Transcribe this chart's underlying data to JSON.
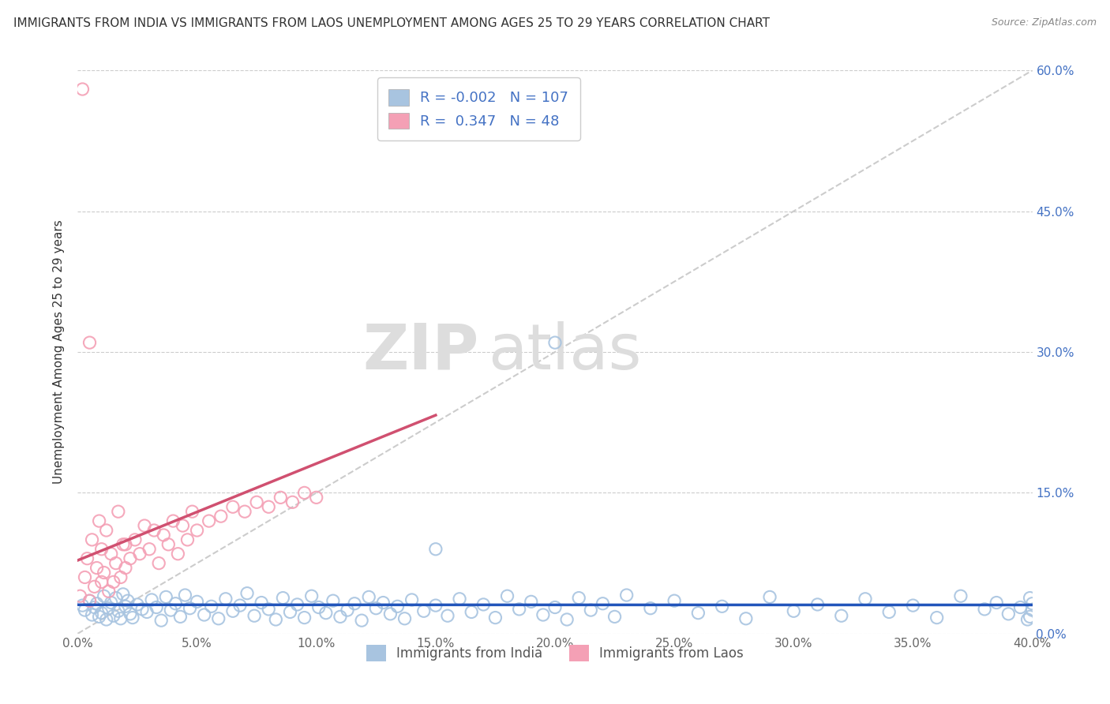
{
  "title": "IMMIGRANTS FROM INDIA VS IMMIGRANTS FROM LAOS UNEMPLOYMENT AMONG AGES 25 TO 29 YEARS CORRELATION CHART",
  "source": "Source: ZipAtlas.com",
  "ylabel": "Unemployment Among Ages 25 to 29 years",
  "xlim": [
    0.0,
    0.4
  ],
  "ylim": [
    0.0,
    0.6
  ],
  "xticks": [
    0.0,
    0.05,
    0.1,
    0.15,
    0.2,
    0.25,
    0.3,
    0.35,
    0.4
  ],
  "yticks": [
    0.0,
    0.15,
    0.3,
    0.45,
    0.6
  ],
  "india_R": -0.002,
  "india_N": 107,
  "laos_R": 0.347,
  "laos_N": 48,
  "india_color": "#a8c4e0",
  "laos_color": "#f4a0b5",
  "india_line_color": "#2255bb",
  "laos_line_color": "#d05070",
  "ref_line_color": "#cccccc",
  "tick_color": "#4472c4",
  "legend_india": "Immigrants from India",
  "legend_laos": "Immigrants from Laos",
  "watermark_zip": "ZIP",
  "watermark_atlas": "atlas",
  "background_color": "#ffffff",
  "india_x": [
    0.002,
    0.003,
    0.005,
    0.006,
    0.007,
    0.008,
    0.009,
    0.01,
    0.011,
    0.012,
    0.013,
    0.014,
    0.015,
    0.016,
    0.017,
    0.018,
    0.019,
    0.02,
    0.021,
    0.022,
    0.023,
    0.025,
    0.027,
    0.029,
    0.031,
    0.033,
    0.035,
    0.037,
    0.039,
    0.041,
    0.043,
    0.045,
    0.047,
    0.05,
    0.053,
    0.056,
    0.059,
    0.062,
    0.065,
    0.068,
    0.071,
    0.074,
    0.077,
    0.08,
    0.083,
    0.086,
    0.089,
    0.092,
    0.095,
    0.098,
    0.101,
    0.104,
    0.107,
    0.11,
    0.113,
    0.116,
    0.119,
    0.122,
    0.125,
    0.128,
    0.131,
    0.134,
    0.137,
    0.14,
    0.145,
    0.15,
    0.155,
    0.16,
    0.165,
    0.17,
    0.175,
    0.18,
    0.185,
    0.19,
    0.195,
    0.2,
    0.205,
    0.21,
    0.215,
    0.22,
    0.225,
    0.23,
    0.24,
    0.25,
    0.26,
    0.27,
    0.28,
    0.29,
    0.3,
    0.31,
    0.32,
    0.33,
    0.34,
    0.35,
    0.36,
    0.37,
    0.38,
    0.385,
    0.39,
    0.395,
    0.398,
    0.399,
    0.4,
    0.4,
    0.399,
    0.2,
    0.15
  ],
  "india_y": [
    0.03,
    0.025,
    0.035,
    0.02,
    0.028,
    0.032,
    0.018,
    0.022,
    0.04,
    0.015,
    0.027,
    0.033,
    0.019,
    0.038,
    0.024,
    0.016,
    0.042,
    0.029,
    0.035,
    0.021,
    0.017,
    0.031,
    0.026,
    0.023,
    0.036,
    0.028,
    0.014,
    0.039,
    0.025,
    0.032,
    0.018,
    0.041,
    0.027,
    0.034,
    0.02,
    0.029,
    0.016,
    0.037,
    0.024,
    0.03,
    0.043,
    0.019,
    0.033,
    0.026,
    0.015,
    0.038,
    0.023,
    0.031,
    0.017,
    0.04,
    0.028,
    0.022,
    0.035,
    0.018,
    0.025,
    0.032,
    0.014,
    0.039,
    0.027,
    0.033,
    0.021,
    0.029,
    0.016,
    0.036,
    0.024,
    0.03,
    0.019,
    0.037,
    0.023,
    0.031,
    0.017,
    0.04,
    0.026,
    0.034,
    0.02,
    0.028,
    0.015,
    0.038,
    0.025,
    0.032,
    0.018,
    0.041,
    0.027,
    0.035,
    0.022,
    0.029,
    0.016,
    0.039,
    0.024,
    0.031,
    0.019,
    0.037,
    0.023,
    0.03,
    0.017,
    0.04,
    0.026,
    0.033,
    0.021,
    0.028,
    0.015,
    0.038,
    0.025,
    0.032,
    0.018,
    0.31,
    0.09
  ],
  "laos_x": [
    0.001,
    0.002,
    0.003,
    0.004,
    0.005,
    0.006,
    0.007,
    0.008,
    0.009,
    0.01,
    0.011,
    0.012,
    0.013,
    0.014,
    0.015,
    0.016,
    0.017,
    0.018,
    0.019,
    0.02,
    0.022,
    0.024,
    0.026,
    0.028,
    0.03,
    0.032,
    0.034,
    0.036,
    0.038,
    0.04,
    0.042,
    0.044,
    0.046,
    0.048,
    0.05,
    0.055,
    0.06,
    0.065,
    0.07,
    0.075,
    0.08,
    0.085,
    0.09,
    0.095,
    0.1,
    0.005,
    0.02,
    0.01
  ],
  "laos_y": [
    0.04,
    0.58,
    0.06,
    0.08,
    0.035,
    0.1,
    0.05,
    0.07,
    0.12,
    0.09,
    0.065,
    0.11,
    0.045,
    0.085,
    0.055,
    0.075,
    0.13,
    0.06,
    0.095,
    0.07,
    0.08,
    0.1,
    0.085,
    0.115,
    0.09,
    0.11,
    0.075,
    0.105,
    0.095,
    0.12,
    0.085,
    0.115,
    0.1,
    0.13,
    0.11,
    0.12,
    0.125,
    0.135,
    0.13,
    0.14,
    0.135,
    0.145,
    0.14,
    0.15,
    0.145,
    0.31,
    0.095,
    0.055
  ]
}
